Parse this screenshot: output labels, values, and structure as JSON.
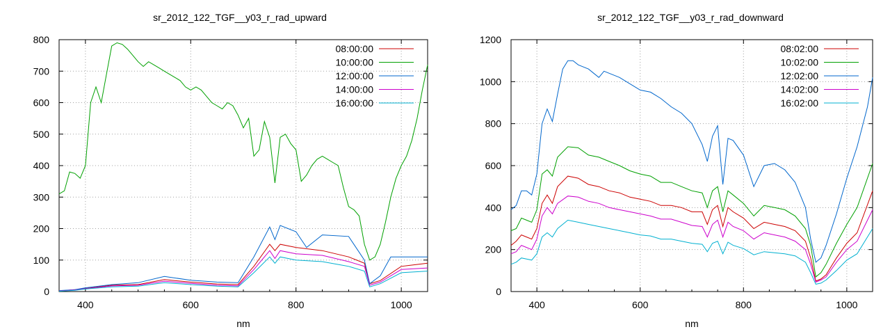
{
  "chart_data": [
    {
      "type": "line",
      "title": "sr_2012_122_TGF__y03_r_rad_upward",
      "xlabel": "nm",
      "ylabel": "",
      "xlim": [
        350,
        1050
      ],
      "ylim": [
        0,
        800
      ],
      "xticks": [
        400,
        600,
        800,
        1000
      ],
      "yticks": [
        0,
        100,
        200,
        300,
        400,
        500,
        600,
        700,
        800
      ],
      "grid": true,
      "legend": "top-right",
      "series": [
        {
          "name": "08:00:00",
          "color": "#cc0000",
          "x": [
            350,
            380,
            400,
            450,
            500,
            550,
            600,
            650,
            690,
            720,
            750,
            760,
            770,
            800,
            850,
            900,
            930,
            940,
            960,
            1000,
            1050
          ],
          "y": [
            2,
            6,
            10,
            20,
            22,
            38,
            30,
            24,
            22,
            80,
            150,
            130,
            150,
            140,
            130,
            110,
            90,
            25,
            35,
            80,
            90
          ]
        },
        {
          "name": "10:00:00",
          "color": "#00a000",
          "x": [
            350,
            360,
            370,
            380,
            390,
            400,
            410,
            420,
            430,
            440,
            450,
            460,
            470,
            480,
            490,
            500,
            510,
            520,
            530,
            540,
            550,
            560,
            570,
            580,
            590,
            600,
            610,
            620,
            630,
            640,
            650,
            660,
            670,
            680,
            690,
            700,
            710,
            720,
            730,
            740,
            750,
            760,
            770,
            780,
            790,
            800,
            810,
            820,
            830,
            840,
            850,
            860,
            870,
            880,
            890,
            900,
            910,
            920,
            930,
            940,
            950,
            960,
            970,
            980,
            990,
            1000,
            1010,
            1020,
            1030,
            1040,
            1050
          ],
          "y": [
            310,
            320,
            380,
            375,
            360,
            400,
            600,
            650,
            600,
            690,
            780,
            790,
            785,
            770,
            750,
            730,
            715,
            730,
            720,
            710,
            700,
            690,
            680,
            670,
            650,
            640,
            650,
            640,
            620,
            600,
            590,
            580,
            600,
            590,
            560,
            520,
            550,
            430,
            450,
            540,
            490,
            345,
            490,
            500,
            470,
            450,
            350,
            370,
            400,
            420,
            430,
            420,
            410,
            400,
            330,
            270,
            260,
            240,
            150,
            100,
            110,
            150,
            220,
            300,
            360,
            400,
            430,
            480,
            550,
            640,
            720
          ]
        },
        {
          "name": "12:00:00",
          "color": "#0066cc",
          "x": [
            350,
            380,
            400,
            450,
            500,
            550,
            600,
            650,
            690,
            720,
            750,
            760,
            770,
            800,
            820,
            850,
            900,
            930,
            940,
            960,
            980,
            1000,
            1050
          ],
          "y": [
            3,
            6,
            12,
            22,
            28,
            48,
            36,
            30,
            28,
            110,
            205,
            165,
            210,
            190,
            140,
            180,
            175,
            100,
            25,
            50,
            110,
            110,
            110
          ]
        },
        {
          "name": "14:00:00",
          "color": "#cc00cc",
          "x": [
            350,
            380,
            400,
            450,
            500,
            550,
            600,
            650,
            690,
            720,
            750,
            760,
            770,
            800,
            850,
            900,
            930,
            940,
            960,
            1000,
            1050
          ],
          "y": [
            2,
            5,
            9,
            18,
            20,
            33,
            26,
            20,
            18,
            70,
            130,
            105,
            130,
            120,
            115,
            95,
            80,
            20,
            30,
            70,
            75
          ]
        },
        {
          "name": "16:00:00",
          "color": "#00b0d0",
          "x": [
            350,
            380,
            400,
            450,
            500,
            550,
            600,
            650,
            690,
            720,
            750,
            760,
            770,
            800,
            850,
            900,
            930,
            940,
            960,
            1000,
            1050
          ],
          "y": [
            1,
            4,
            8,
            15,
            17,
            28,
            22,
            17,
            15,
            60,
            110,
            90,
            110,
            100,
            95,
            80,
            65,
            15,
            25,
            60,
            65
          ]
        }
      ]
    },
    {
      "type": "line",
      "title": "sr_2012_122_TGF__y03_r_rad_downward",
      "xlabel": "nm",
      "ylabel": "",
      "xlim": [
        350,
        1050
      ],
      "ylim": [
        0,
        1200
      ],
      "xticks": [
        400,
        600,
        800,
        1000
      ],
      "yticks": [
        0,
        200,
        400,
        600,
        800,
        1000,
        1200
      ],
      "grid": true,
      "legend": "top-right",
      "series": [
        {
          "name": "08:02:00",
          "color": "#cc0000",
          "x": [
            350,
            360,
            370,
            380,
            390,
            400,
            410,
            420,
            430,
            440,
            460,
            480,
            500,
            520,
            540,
            560,
            580,
            600,
            620,
            640,
            660,
            680,
            700,
            720,
            730,
            740,
            750,
            760,
            770,
            780,
            800,
            820,
            840,
            860,
            880,
            900,
            920,
            930,
            940,
            950,
            960,
            980,
            1000,
            1020,
            1050
          ],
          "y": [
            220,
            240,
            270,
            260,
            250,
            300,
            420,
            460,
            420,
            500,
            550,
            540,
            510,
            500,
            480,
            470,
            450,
            440,
            430,
            410,
            410,
            400,
            380,
            380,
            320,
            390,
            410,
            310,
            400,
            380,
            350,
            300,
            330,
            320,
            310,
            290,
            240,
            160,
            50,
            60,
            80,
            160,
            230,
            280,
            480
          ]
        },
        {
          "name": "10:02:00",
          "color": "#00a000",
          "x": [
            350,
            360,
            370,
            380,
            390,
            400,
            410,
            420,
            430,
            440,
            460,
            480,
            500,
            520,
            540,
            560,
            580,
            600,
            620,
            640,
            660,
            680,
            700,
            720,
            730,
            740,
            750,
            760,
            770,
            780,
            800,
            820,
            840,
            860,
            880,
            900,
            920,
            930,
            940,
            950,
            960,
            980,
            1000,
            1020,
            1050
          ],
          "y": [
            290,
            300,
            350,
            340,
            330,
            390,
            560,
            580,
            550,
            640,
            690,
            685,
            650,
            640,
            620,
            600,
            575,
            560,
            550,
            520,
            520,
            500,
            480,
            470,
            400,
            480,
            500,
            380,
            480,
            460,
            420,
            360,
            410,
            400,
            390,
            360,
            300,
            220,
            70,
            90,
            130,
            230,
            320,
            400,
            610
          ]
        },
        {
          "name": "12:02:00",
          "color": "#0066cc",
          "x": [
            350,
            360,
            370,
            380,
            390,
            400,
            410,
            420,
            430,
            440,
            450,
            460,
            470,
            480,
            490,
            500,
            510,
            520,
            530,
            540,
            560,
            580,
            600,
            620,
            640,
            660,
            680,
            700,
            720,
            730,
            740,
            750,
            760,
            770,
            780,
            800,
            820,
            840,
            860,
            880,
            900,
            920,
            930,
            940,
            950,
            960,
            980,
            1000,
            1020,
            1040,
            1050
          ],
          "y": [
            390,
            410,
            480,
            480,
            460,
            560,
            800,
            870,
            810,
            940,
            1060,
            1100,
            1100,
            1080,
            1070,
            1060,
            1040,
            1020,
            1050,
            1040,
            1020,
            990,
            960,
            950,
            920,
            880,
            850,
            800,
            700,
            620,
            740,
            790,
            510,
            730,
            720,
            650,
            500,
            600,
            610,
            580,
            520,
            400,
            250,
            140,
            160,
            220,
            370,
            540,
            690,
            880,
            1020
          ]
        },
        {
          "name": "14:02:00",
          "color": "#cc00cc",
          "x": [
            350,
            360,
            370,
            380,
            390,
            400,
            410,
            420,
            430,
            440,
            460,
            480,
            500,
            520,
            540,
            560,
            580,
            600,
            620,
            640,
            660,
            680,
            700,
            720,
            730,
            740,
            750,
            760,
            770,
            780,
            800,
            820,
            840,
            860,
            880,
            900,
            920,
            930,
            940,
            950,
            960,
            980,
            1000,
            1020,
            1050
          ],
          "y": [
            180,
            190,
            220,
            210,
            200,
            250,
            360,
            400,
            370,
            420,
            455,
            450,
            430,
            420,
            400,
            390,
            380,
            370,
            360,
            345,
            345,
            330,
            315,
            310,
            260,
            320,
            340,
            260,
            330,
            310,
            290,
            250,
            280,
            270,
            260,
            240,
            200,
            130,
            45,
            55,
            70,
            140,
            200,
            240,
            390
          ]
        },
        {
          "name": "16:02:00",
          "color": "#00b0d0",
          "x": [
            350,
            360,
            370,
            380,
            390,
            400,
            410,
            420,
            430,
            440,
            460,
            480,
            500,
            520,
            540,
            560,
            580,
            600,
            620,
            640,
            660,
            680,
            700,
            720,
            730,
            740,
            750,
            760,
            770,
            780,
            800,
            820,
            840,
            860,
            880,
            900,
            920,
            930,
            940,
            950,
            960,
            980,
            1000,
            1020,
            1050
          ],
          "y": [
            130,
            140,
            160,
            155,
            150,
            180,
            260,
            280,
            260,
            300,
            340,
            330,
            320,
            310,
            300,
            290,
            280,
            270,
            265,
            250,
            250,
            240,
            230,
            225,
            190,
            230,
            240,
            180,
            235,
            220,
            205,
            175,
            190,
            185,
            180,
            170,
            140,
            90,
            35,
            40,
            55,
            100,
            150,
            180,
            300
          ]
        }
      ]
    }
  ]
}
